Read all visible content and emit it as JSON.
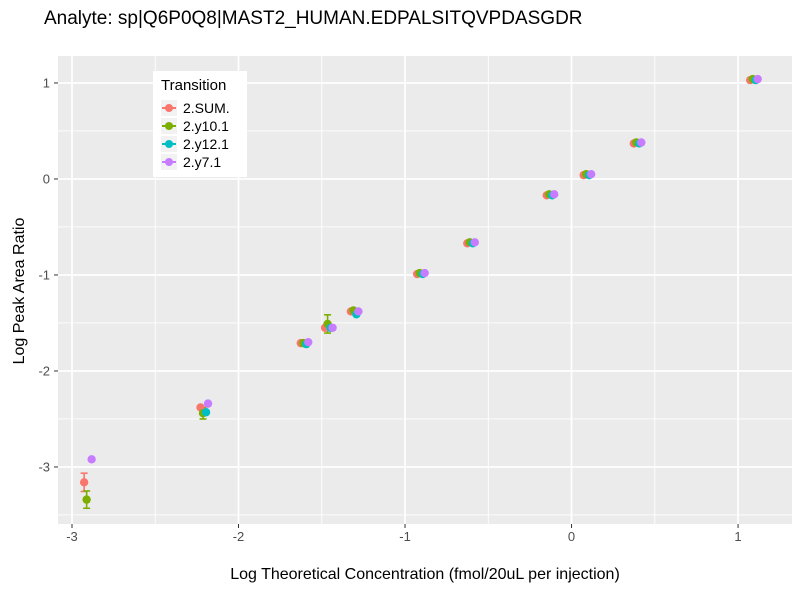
{
  "title": "Analyte: sp|Q6P0Q8|MAST2_HUMAN.EDPALSITQVPDASGDR",
  "axes": {
    "x_label": "Log Theoretical Concentration (fmol/20uL per injection)",
    "y_label": "Log Peak Area Ratio"
  },
  "legend": {
    "title": "Transition"
  },
  "panel_color": "#EBEBEB",
  "gridline_color": "#FFFFFF",
  "tick_text_color": "#4D4D4D",
  "tick_mark_color": "#333333",
  "chart_data": {
    "type": "scatter",
    "title": "Analyte: sp|Q6P0Q8|MAST2_HUMAN.EDPALSITQVPDASGDR",
    "xlabel": "Log Theoretical Concentration (fmol/20uL per injection)",
    "ylabel": "Log Peak Area Ratio",
    "legend_title": "Transition",
    "legend_position": "inside-top-left",
    "grid": true,
    "x_ticks": [
      -3,
      -2,
      -1,
      0,
      1
    ],
    "y_ticks": [
      1,
      0,
      -1,
      -2,
      -3
    ],
    "minor_step": 0.5,
    "x_range": [
      -3.084,
      1.324
    ],
    "y_range": [
      -3.594,
      1.281
    ],
    "x": [
      -2.903,
      -2.204,
      -1.602,
      -1.456,
      -1.301,
      -0.903,
      -0.602,
      -0.125,
      0.097,
      0.398,
      1.097
    ],
    "series": [
      {
        "name": "2.SUM.",
        "color": "#F8766D",
        "y": [
          -3.16,
          -2.38,
          -1.71,
          -1.55,
          -1.38,
          -0.99,
          -0.67,
          -0.17,
          0.04,
          0.37,
          1.03
        ],
        "err": [
          0.095,
          null,
          null,
          null,
          null,
          null,
          null,
          null,
          null,
          null,
          null
        ]
      },
      {
        "name": "2.y10.1",
        "color": "#7CAE00",
        "y": [
          -3.34,
          -2.44,
          -1.71,
          -1.51,
          -1.37,
          -0.98,
          -0.66,
          -0.16,
          0.05,
          0.38,
          1.04
        ],
        "err": [
          0.09,
          0.06,
          null,
          0.095,
          null,
          null,
          null,
          null,
          null,
          null,
          null
        ]
      },
      {
        "name": "2.y12.1",
        "color": "#00BFC4",
        "y": [
          null,
          -2.43,
          -1.72,
          -1.55,
          -1.41,
          -0.99,
          -0.67,
          -0.17,
          0.04,
          0.37,
          1.03
        ],
        "err": [
          null,
          null,
          null,
          null,
          null,
          null,
          null,
          null,
          null,
          null,
          null
        ]
      },
      {
        "name": "2.y7.1",
        "color": "#C77CFF",
        "y": [
          -2.92,
          -2.34,
          -1.7,
          -1.55,
          -1.38,
          -0.98,
          -0.66,
          -0.16,
          0.05,
          0.38,
          1.04
        ],
        "err": [
          null,
          null,
          null,
          null,
          null,
          null,
          null,
          null,
          null,
          null,
          null
        ]
      }
    ]
  }
}
